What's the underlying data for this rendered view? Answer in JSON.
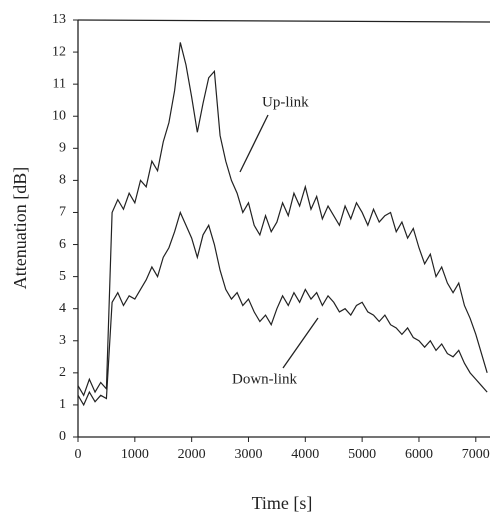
{
  "chart_data": {
    "type": "line",
    "x_label": "Time [s]",
    "y_label": "Attenuation [dB]",
    "annotations": [
      "Up-link",
      "Down-link"
    ],
    "x": [
      0,
      100,
      200,
      300,
      400,
      500,
      600,
      700,
      800,
      900,
      1000,
      1100,
      1200,
      1300,
      1400,
      1500,
      1600,
      1700,
      1800,
      1900,
      2000,
      2100,
      2200,
      2300,
      2400,
      2500,
      2600,
      2700,
      2800,
      2900,
      3000,
      3100,
      3200,
      3300,
      3400,
      3500,
      3600,
      3700,
      3800,
      3900,
      4000,
      4100,
      4200,
      4300,
      4400,
      4500,
      4600,
      4700,
      4800,
      4900,
      5000,
      5100,
      5200,
      5300,
      5400,
      5500,
      5600,
      5700,
      5800,
      5900,
      6000,
      6100,
      6200,
      6300,
      6400,
      6500,
      6600,
      6700,
      6800,
      6900,
      7000,
      7100,
      7200
    ],
    "series": [
      {
        "name": "Up-link",
        "color": "#222222",
        "values": [
          1.6,
          1.3,
          1.8,
          1.4,
          1.7,
          1.5,
          7.0,
          7.4,
          7.1,
          7.6,
          7.3,
          8.0,
          7.8,
          8.6,
          8.3,
          9.2,
          9.8,
          10.8,
          12.3,
          11.6,
          10.6,
          9.5,
          10.4,
          11.2,
          11.4,
          9.4,
          8.6,
          8.0,
          7.6,
          7.0,
          7.3,
          6.6,
          6.3,
          6.9,
          6.4,
          6.7,
          7.3,
          6.9,
          7.6,
          7.2,
          7.8,
          7.1,
          7.5,
          6.8,
          7.2,
          6.9,
          6.6,
          7.2,
          6.8,
          7.3,
          7.0,
          6.6,
          7.1,
          6.7,
          6.9,
          7.0,
          6.4,
          6.7,
          6.2,
          6.5,
          5.9,
          5.4,
          5.7,
          5.0,
          5.3,
          4.8,
          4.5,
          4.8,
          4.1,
          3.7,
          3.2,
          2.6,
          2.0
        ]
      },
      {
        "name": "Down-link",
        "color": "#222222",
        "values": [
          1.3,
          1.0,
          1.4,
          1.1,
          1.3,
          1.2,
          4.2,
          4.5,
          4.1,
          4.4,
          4.3,
          4.6,
          4.9,
          5.3,
          5.0,
          5.6,
          5.9,
          6.4,
          7.0,
          6.6,
          6.2,
          5.6,
          6.3,
          6.6,
          6.0,
          5.2,
          4.6,
          4.3,
          4.5,
          4.1,
          4.3,
          3.9,
          3.6,
          3.8,
          3.5,
          4.0,
          4.4,
          4.1,
          4.5,
          4.2,
          4.6,
          4.3,
          4.5,
          4.1,
          4.4,
          4.2,
          3.9,
          4.0,
          3.8,
          4.1,
          4.2,
          3.9,
          3.8,
          3.6,
          3.8,
          3.5,
          3.4,
          3.2,
          3.4,
          3.1,
          3.0,
          2.8,
          3.0,
          2.7,
          2.9,
          2.6,
          2.5,
          2.7,
          2.3,
          2.0,
          1.8,
          1.6,
          1.4
        ]
      }
    ],
    "xlim": [
      0,
      7250
    ],
    "ylim": [
      0,
      13
    ],
    "xticks": [
      0,
      1000,
      2000,
      3000,
      4000,
      5000,
      6000,
      7000
    ],
    "yticks": [
      0,
      1,
      2,
      3,
      4,
      5,
      6,
      7,
      8,
      9,
      10,
      11,
      12,
      13
    ],
    "grid": false
  }
}
